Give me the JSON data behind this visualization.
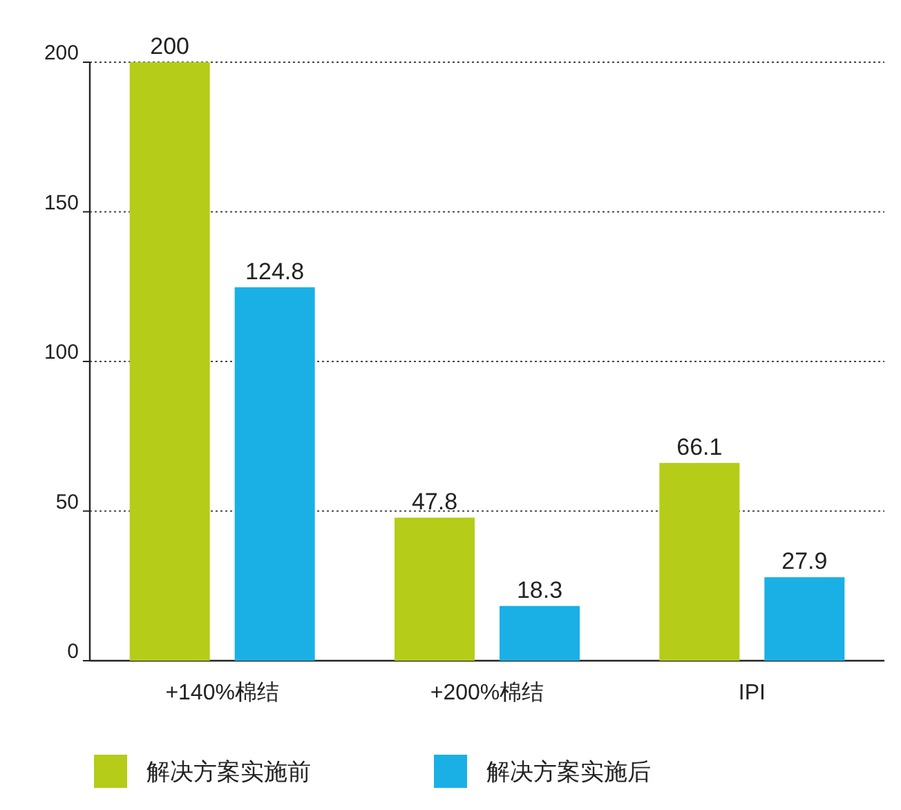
{
  "chart_data": {
    "type": "bar",
    "categories": [
      "+140%棉结",
      "+200%棉结",
      "IPI"
    ],
    "series": [
      {
        "name": "解决方案实施前",
        "color": "#b5cc18",
        "values": [
          200,
          47.8,
          66.1
        ]
      },
      {
        "name": "解决方案实施后",
        "color": "#1ab0e6",
        "values": [
          124.8,
          18.3,
          27.9
        ]
      }
    ],
    "ylim": [
      0,
      200
    ],
    "yticks": [
      0,
      50,
      100,
      150,
      200
    ],
    "grid": "y",
    "legend": "bottom left",
    "data_labels": true
  }
}
